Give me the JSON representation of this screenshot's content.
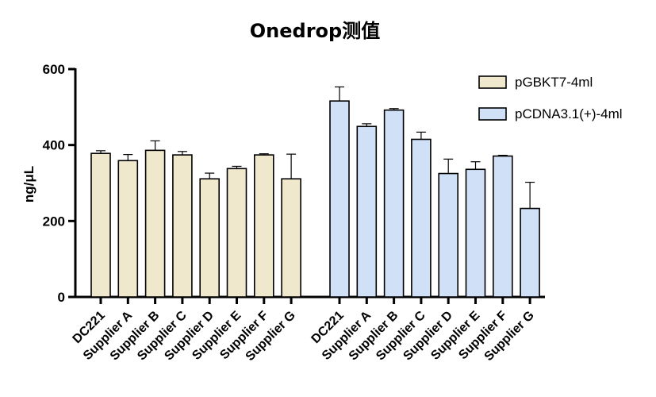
{
  "chart_data": {
    "type": "bar",
    "title": "Onedrop测值",
    "xlabel": "",
    "ylabel": "ng/μL",
    "ylim": [
      0,
      600
    ],
    "yticks": [
      0,
      200,
      400,
      600
    ],
    "grid": false,
    "legend_position": "top-right",
    "categories": [
      "DC221",
      "Supplier A",
      "Supplier B",
      "Supplier C",
      "Supplier D",
      "Supplier E",
      "Supplier F",
      "Supplier G"
    ],
    "series": [
      {
        "name": "pGBKT7-4ml",
        "color": "#efe8cc",
        "values": [
          378,
          359,
          386,
          374,
          311,
          338,
          374,
          311
        ],
        "errors": [
          7,
          16,
          25,
          9,
          15,
          6,
          3,
          65
        ]
      },
      {
        "name": "pCDNA3.1(+)-4ml",
        "color": "#cfe0f7",
        "values": [
          516,
          449,
          492,
          415,
          325,
          336,
          371,
          233
        ],
        "errors": [
          37,
          7,
          4,
          19,
          38,
          20,
          2,
          69
        ]
      }
    ]
  }
}
